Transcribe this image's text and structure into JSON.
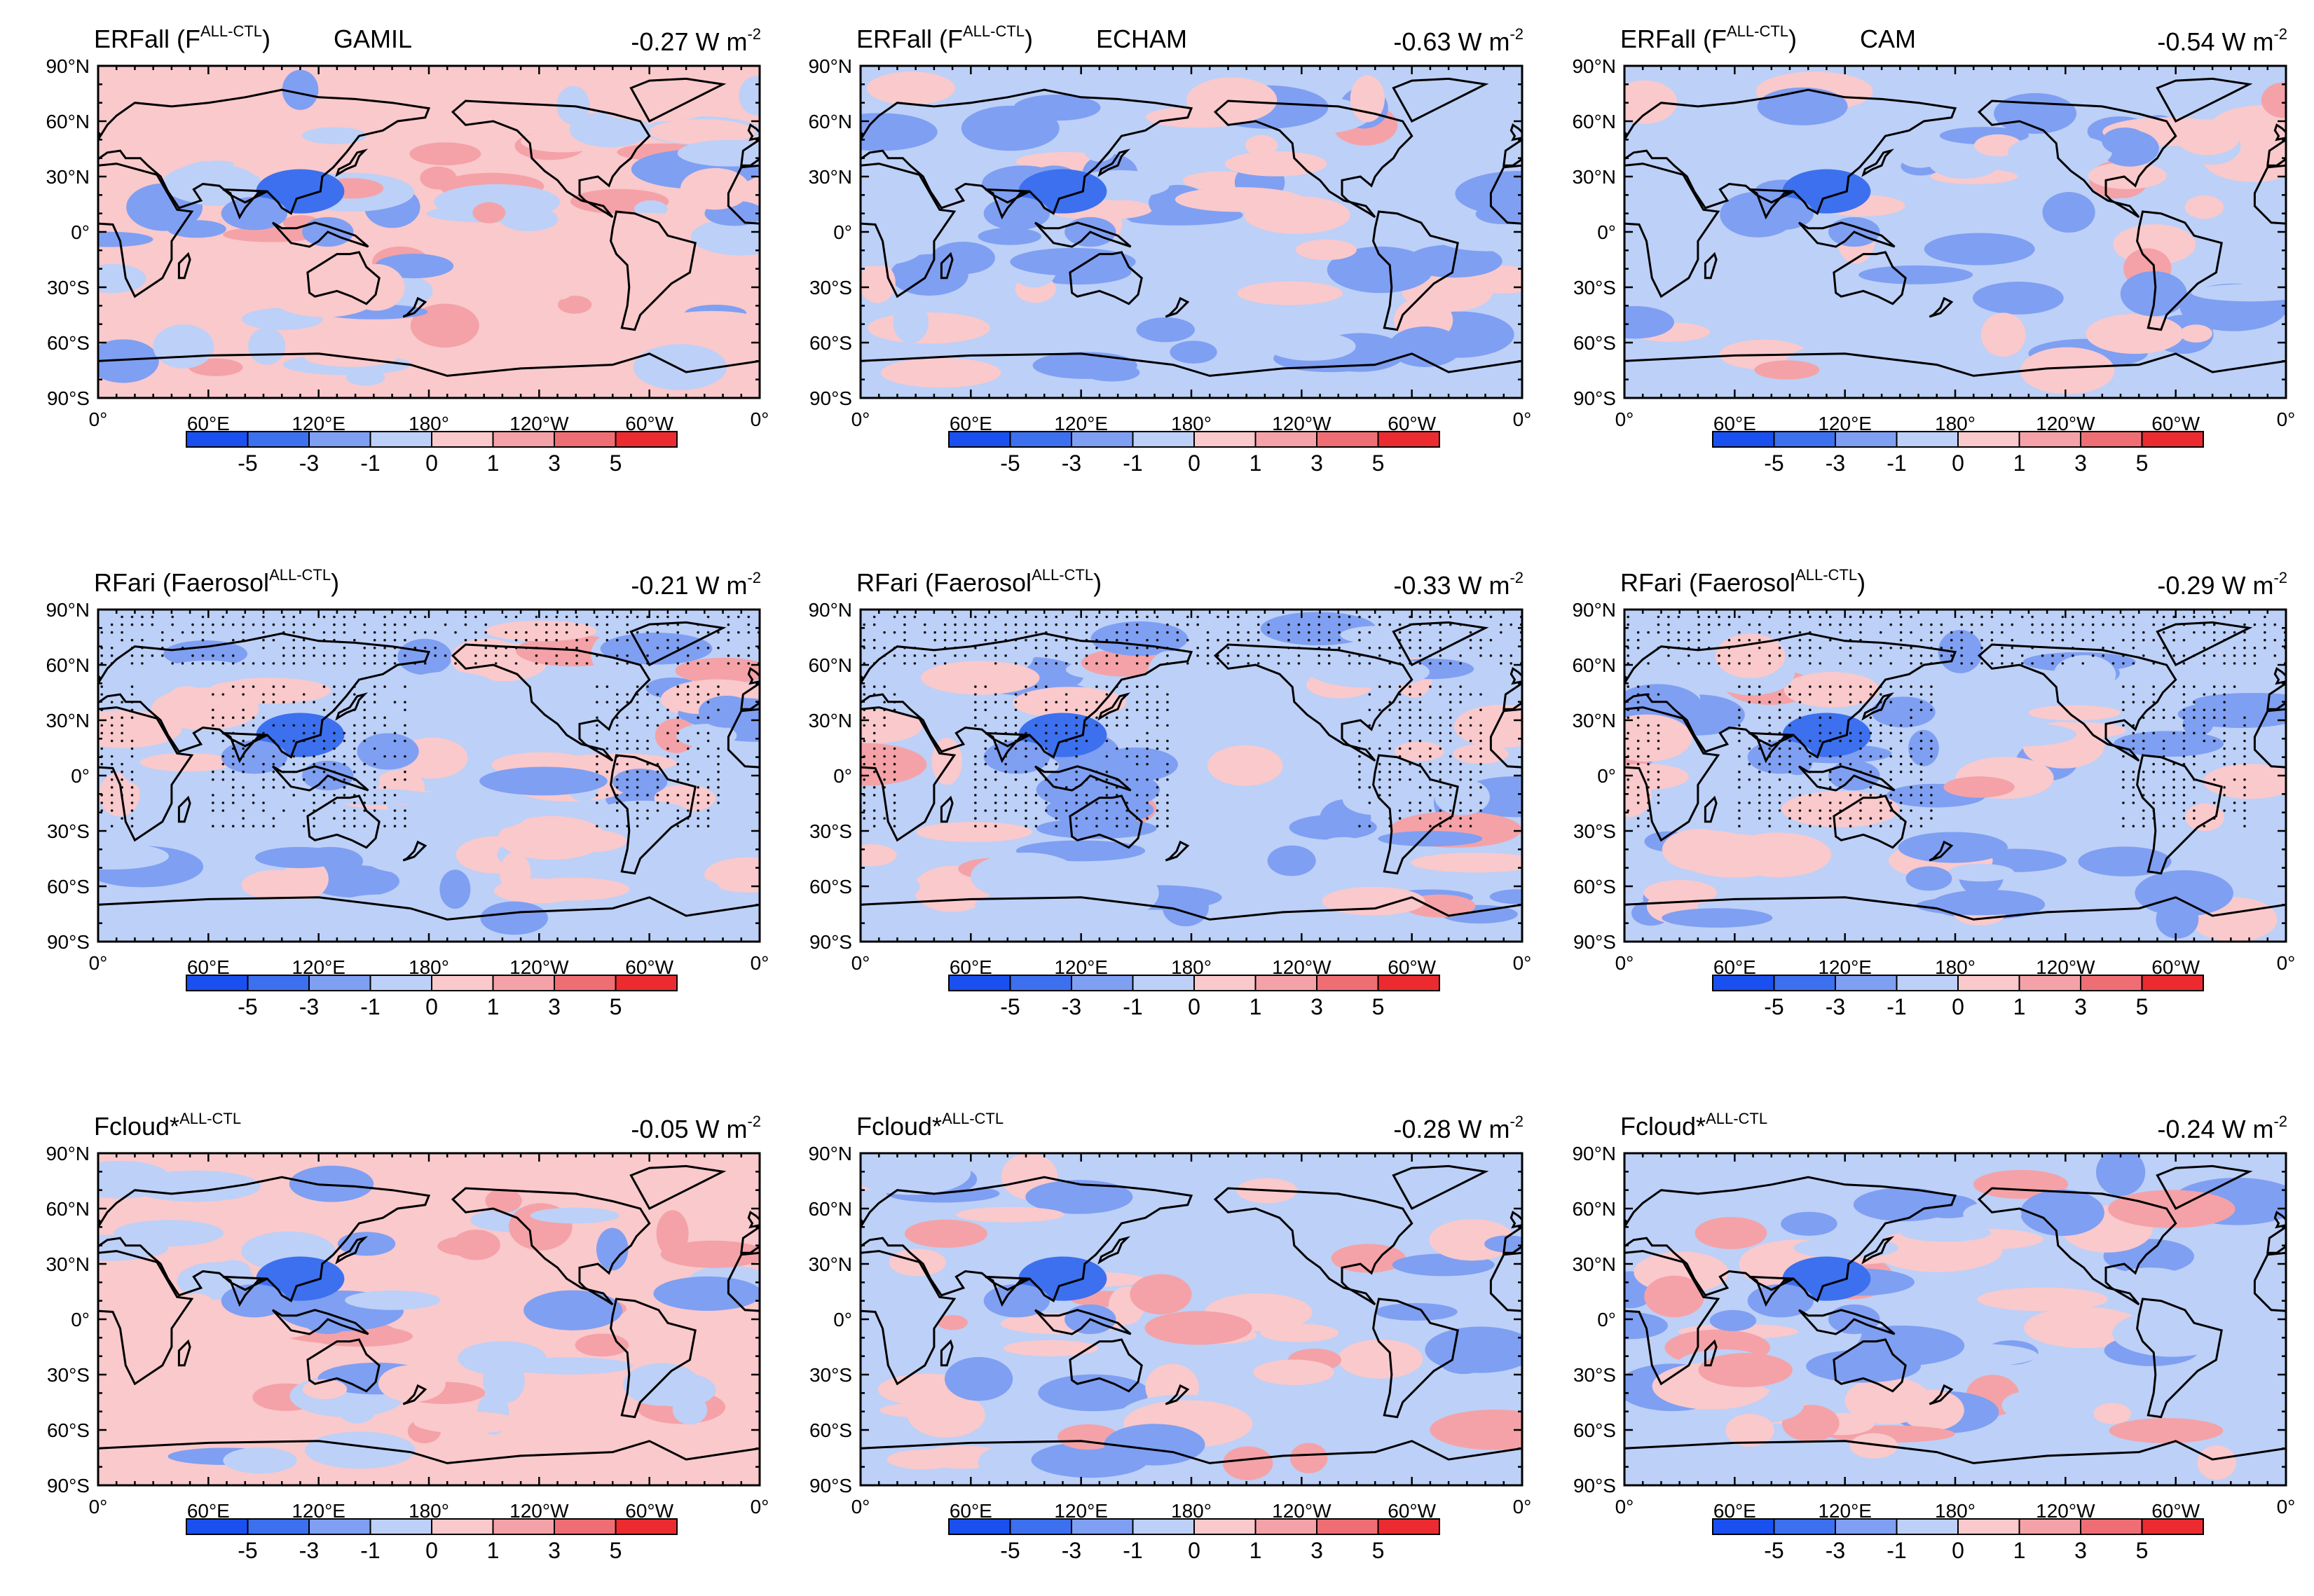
{
  "figure": {
    "description_units": "W m-2",
    "colors": {
      "neg5": "#1a4ff0",
      "neg3": "#3c70ee",
      "neg1": "#7f9ff2",
      "neg0": "#bdd0f7",
      "pos0": "#f9c9cc",
      "pos1": "#f4a2a7",
      "pos3": "#ef6e74",
      "pos5": "#ec2b30",
      "coast": "#000000",
      "stipple": "#111111"
    }
  },
  "chart_data": [
    {
      "type": "heatmap",
      "row": 0,
      "col": 0,
      "variable": "ERFall",
      "title_parts": [
        "ERFall (F",
        "ALL-CTL",
        ")"
      ],
      "model": "GAMIL",
      "global_mean": "-0.27 W m",
      "global_mean_exp": "-2",
      "stippled": false,
      "field_seed": 11,
      "bias": 0.05
    },
    {
      "type": "heatmap",
      "row": 0,
      "col": 1,
      "variable": "ERFall",
      "title_parts": [
        "ERFall (F",
        "ALL-CTL",
        ")"
      ],
      "model": "ECHAM",
      "global_mean": "-0.63 W m",
      "global_mean_exp": "-2",
      "stippled": false,
      "field_seed": 23,
      "bias": -0.35
    },
    {
      "type": "heatmap",
      "row": 0,
      "col": 2,
      "variable": "ERFall",
      "title_parts": [
        "ERFall (F",
        "ALL-CTL",
        ")"
      ],
      "model": "CAM",
      "global_mean": "-0.54 W m",
      "global_mean_exp": "-2",
      "stippled": false,
      "field_seed": 37,
      "bias": -0.25
    },
    {
      "type": "heatmap",
      "row": 1,
      "col": 0,
      "variable": "RFari",
      "title_parts": [
        "RFari (Faerosol",
        "ALL-CTL",
        ")"
      ],
      "model": "",
      "global_mean": "-0.21 W m",
      "global_mean_exp": "-2",
      "stippled": true,
      "field_seed": 41,
      "bias": -0.3
    },
    {
      "type": "heatmap",
      "row": 1,
      "col": 1,
      "variable": "RFari",
      "title_parts": [
        "RFari (Faerosol",
        "ALL-CTL",
        ")"
      ],
      "model": "",
      "global_mean": "-0.33 W m",
      "global_mean_exp": "-2",
      "stippled": true,
      "field_seed": 53,
      "bias": -0.35
    },
    {
      "type": "heatmap",
      "row": 1,
      "col": 2,
      "variable": "RFari",
      "title_parts": [
        "RFari (Faerosol",
        "ALL-CTL",
        ")"
      ],
      "model": "",
      "global_mean": "-0.29 W m",
      "global_mean_exp": "-2",
      "stippled": true,
      "field_seed": 67,
      "bias": -0.38
    },
    {
      "type": "heatmap",
      "row": 2,
      "col": 0,
      "variable": "Fcloud*",
      "title_parts": [
        "Fcloud*",
        "ALL-CTL",
        ""
      ],
      "model": "",
      "global_mean": "-0.05 W m",
      "global_mean_exp": "-2",
      "stippled": false,
      "field_seed": 71,
      "bias": 0.1
    },
    {
      "type": "heatmap",
      "row": 2,
      "col": 1,
      "variable": "Fcloud*",
      "title_parts": [
        "Fcloud*",
        "ALL-CTL",
        ""
      ],
      "model": "",
      "global_mean": "-0.28 W m",
      "global_mean_exp": "-2",
      "stippled": false,
      "field_seed": 83,
      "bias": -0.1
    },
    {
      "type": "heatmap",
      "row": 2,
      "col": 2,
      "variable": "Fcloud*",
      "title_parts": [
        "Fcloud*",
        "ALL-CTL",
        ""
      ],
      "model": "",
      "global_mean": "-0.24 W m",
      "global_mean_exp": "-2",
      "stippled": false,
      "field_seed": 97,
      "bias": -0.05
    }
  ],
  "axes": {
    "y_ticks": [
      "90°N",
      "60°N",
      "30°N",
      "0°",
      "30°S",
      "60°S",
      "90°S"
    ],
    "x_ticks": [
      "0°",
      "60°E",
      "120°E",
      "180°",
      "120°W",
      "60°W",
      "0°"
    ],
    "xlim_lon": [
      0,
      360
    ],
    "ylim_lat": [
      -90,
      90
    ]
  },
  "colorbar": {
    "levels": [
      "-5",
      "-3",
      "-1",
      "0",
      "1",
      "3",
      "5"
    ],
    "bins": [
      "neg5",
      "neg3",
      "neg1",
      "neg0",
      "pos0",
      "pos1",
      "pos3",
      "pos5"
    ]
  }
}
